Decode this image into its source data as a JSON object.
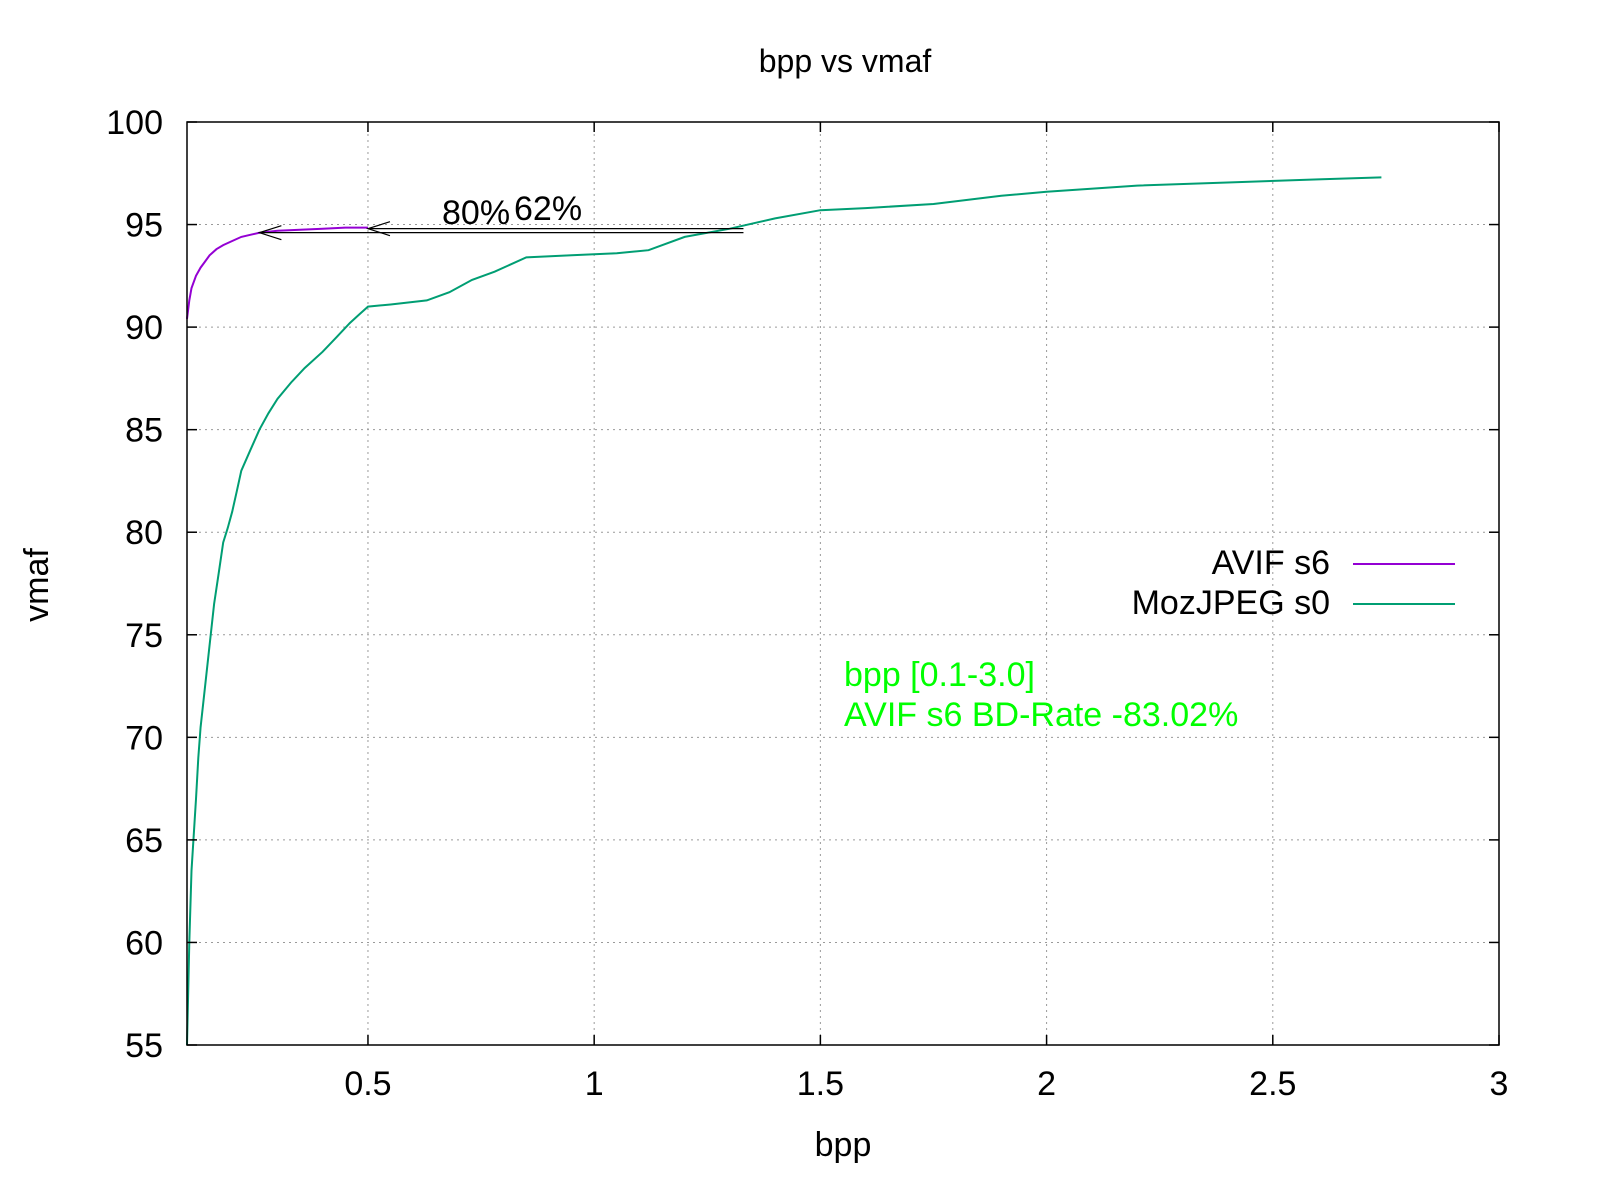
{
  "chart_data": {
    "type": "line",
    "title": "bpp vs vmaf",
    "xlabel": "bpp",
    "ylabel": "vmaf",
    "xlim": [
      0.1,
      3.0
    ],
    "ylim": [
      55,
      100
    ],
    "x_ticks": [
      0.5,
      1,
      1.5,
      2,
      2.5,
      3
    ],
    "x_tick_labels": [
      "0.5",
      "1",
      "1.5",
      "2",
      "2.5",
      "3"
    ],
    "y_ticks": [
      55,
      60,
      65,
      70,
      75,
      80,
      85,
      90,
      95,
      100
    ],
    "y_tick_labels": [
      "55",
      "60",
      "65",
      "70",
      "75",
      "80",
      "85",
      "90",
      "95",
      "100"
    ],
    "grid": true,
    "legend_position": "right",
    "series": [
      {
        "name": "AVIF s6",
        "color": "#9400d3",
        "points": [
          [
            0.1,
            90.4
          ],
          [
            0.105,
            91.3
          ],
          [
            0.11,
            91.9
          ],
          [
            0.12,
            92.5
          ],
          [
            0.13,
            92.9
          ],
          [
            0.14,
            93.2
          ],
          [
            0.15,
            93.5
          ],
          [
            0.165,
            93.8
          ],
          [
            0.18,
            94.0
          ],
          [
            0.2,
            94.2
          ],
          [
            0.22,
            94.4
          ],
          [
            0.24,
            94.5
          ],
          [
            0.26,
            94.6
          ],
          [
            0.3,
            94.7
          ],
          [
            0.35,
            94.75
          ],
          [
            0.4,
            94.8
          ],
          [
            0.45,
            94.85
          ],
          [
            0.5,
            94.85
          ]
        ]
      },
      {
        "name": "MozJPEG s0",
        "color": "#009e73",
        "points": [
          [
            0.1,
            55.0
          ],
          [
            0.105,
            60.0
          ],
          [
            0.11,
            63.5
          ],
          [
            0.12,
            67.0
          ],
          [
            0.125,
            69.0
          ],
          [
            0.13,
            70.5
          ],
          [
            0.14,
            72.5
          ],
          [
            0.15,
            74.5
          ],
          [
            0.16,
            76.5
          ],
          [
            0.17,
            78.0
          ],
          [
            0.18,
            79.5
          ],
          [
            0.19,
            80.2
          ],
          [
            0.2,
            81.0
          ],
          [
            0.21,
            82.0
          ],
          [
            0.22,
            83.0
          ],
          [
            0.24,
            84.0
          ],
          [
            0.26,
            85.0
          ],
          [
            0.28,
            85.8
          ],
          [
            0.3,
            86.5
          ],
          [
            0.33,
            87.3
          ],
          [
            0.36,
            88.0
          ],
          [
            0.4,
            88.8
          ],
          [
            0.43,
            89.5
          ],
          [
            0.46,
            90.2
          ],
          [
            0.48,
            90.6
          ],
          [
            0.5,
            91.0
          ],
          [
            0.55,
            91.1
          ],
          [
            0.63,
            91.3
          ],
          [
            0.68,
            91.7
          ],
          [
            0.73,
            92.3
          ],
          [
            0.78,
            92.7
          ],
          [
            0.85,
            93.4
          ],
          [
            0.95,
            93.5
          ],
          [
            1.05,
            93.6
          ],
          [
            1.12,
            93.75
          ],
          [
            1.2,
            94.4
          ],
          [
            1.3,
            94.8
          ],
          [
            1.4,
            95.3
          ],
          [
            1.5,
            95.7
          ],
          [
            1.6,
            95.8
          ],
          [
            1.75,
            96.0
          ],
          [
            1.9,
            96.4
          ],
          [
            2.0,
            96.6
          ],
          [
            2.2,
            96.9
          ],
          [
            2.4,
            97.05
          ],
          [
            2.6,
            97.2
          ],
          [
            2.74,
            97.3
          ]
        ]
      }
    ],
    "annotations": {
      "arrow_80": {
        "label": "80%",
        "from_x": 1.33,
        "to_x": 0.26,
        "y": 94.8
      },
      "arrow_62": {
        "label": "62%",
        "from_x": 1.33,
        "to_x": 0.5,
        "y": 94.8
      },
      "info_lines": [
        "bpp [0.1-3.0]",
        "AVIF s6 BD-Rate -83.02%"
      ],
      "info_color": "#00ff00"
    }
  }
}
